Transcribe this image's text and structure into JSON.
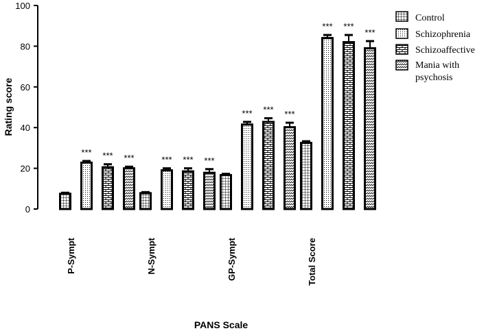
{
  "chart_data": {
    "type": "bar",
    "ylabel": "Rating score",
    "xlabel": "PANS Scale",
    "ylim": [
      0,
      100
    ],
    "yticks": [
      0,
      20,
      40,
      60,
      80,
      100
    ],
    "categories": [
      "P-Sympt",
      "N-Sympt",
      "GP-Sympt",
      "Total Score"
    ],
    "series": [
      {
        "name": "Control",
        "values": [
          7.5,
          7.8,
          16.7,
          32.5
        ],
        "errors": [
          0.5,
          0.5,
          0.6,
          0.8
        ],
        "stars": [
          "",
          "",
          "",
          ""
        ],
        "pattern": "grid"
      },
      {
        "name": "Schizophrenia",
        "values": [
          22.8,
          19.0,
          41.5,
          84.0
        ],
        "errors": [
          0.8,
          1.0,
          1.3,
          1.5
        ],
        "stars": [
          "***",
          "***",
          "***",
          "***"
        ],
        "pattern": "dots"
      },
      {
        "name": "Schizoaffective",
        "values": [
          20.5,
          18.5,
          42.8,
          82.0
        ],
        "errors": [
          1.5,
          1.5,
          1.8,
          3.5
        ],
        "stars": [
          "***",
          "***",
          "***",
          "***"
        ],
        "pattern": "brick"
      },
      {
        "name": "Mania with psychosis",
        "values": [
          20.0,
          17.8,
          40.2,
          79.0
        ],
        "errors": [
          0.8,
          1.8,
          2.2,
          3.5
        ],
        "stars": [
          "***",
          "***",
          "***",
          "***"
        ],
        "pattern": "zigzag"
      }
    ],
    "legend": {
      "position": "top-right",
      "entries": [
        "Control",
        "Schizophrenia",
        "Schizoaffective",
        "Mania with",
        "psychosis"
      ]
    },
    "grid": false
  }
}
